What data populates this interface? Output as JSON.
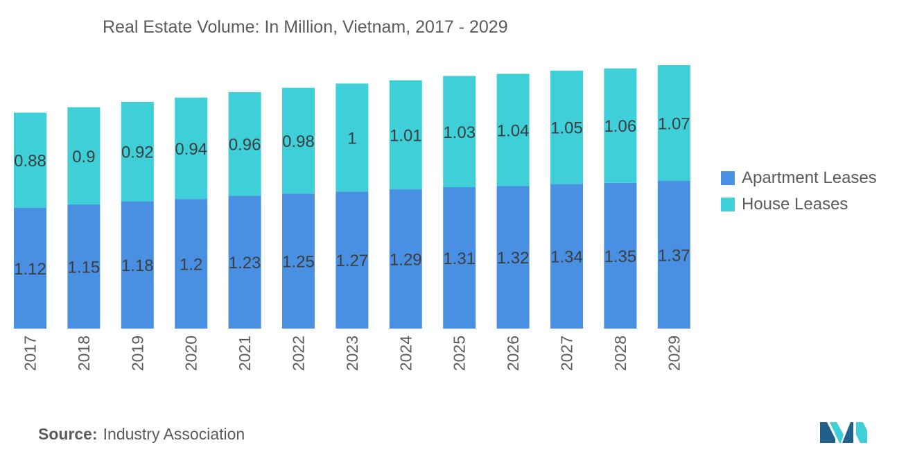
{
  "title": "Real Estate Volume: In Million, Vietnam, 2017 - 2029",
  "source": {
    "label": "Source:",
    "text": "Industry Association"
  },
  "colors": {
    "apartment": "#4a90e2",
    "house": "#3ecfd9",
    "text": "#5b5b5b",
    "data_label": "#3d3d3d",
    "logo_dark": "#1f5f8b",
    "logo_light": "#3ecfd9"
  },
  "chart_data": {
    "type": "bar",
    "stacked": true,
    "title": "Real Estate Volume: In Million, Vietnam, 2017 - 2029",
    "categories": [
      "2017",
      "2018",
      "2019",
      "2020",
      "2021",
      "2022",
      "2023",
      "2024",
      "2025",
      "2026",
      "2027",
      "2028",
      "2029"
    ],
    "series": [
      {
        "name": "Apartment Leases",
        "color": "#4a90e2",
        "values": [
          1.12,
          1.15,
          1.18,
          1.2,
          1.23,
          1.25,
          1.27,
          1.29,
          1.31,
          1.32,
          1.34,
          1.35,
          1.37
        ]
      },
      {
        "name": "House Leases",
        "color": "#3ecfd9",
        "values": [
          0.88,
          0.9,
          0.92,
          0.94,
          0.96,
          0.98,
          1,
          1.01,
          1.03,
          1.04,
          1.05,
          1.06,
          1.07
        ]
      }
    ],
    "ylim": [
      0,
      2.44
    ],
    "grid": false,
    "legend": "right",
    "xlabel": "",
    "ylabel": ""
  }
}
